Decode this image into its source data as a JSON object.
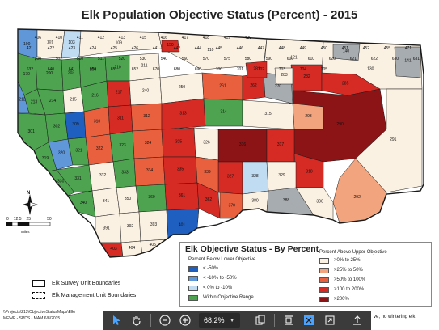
{
  "map": {
    "title": "Elk Population Objective Status (Percent) - 2015",
    "colors": {
      "below_50": "#1f5fbf",
      "below_10_50": "#5f97d8",
      "below_0_10": "#bfdcf2",
      "within": "#4ea350",
      "above_0_25": "#fbf1e2",
      "above_25_50": "#f2a47e",
      "above_50_100": "#e8603e",
      "above_100_200": "#d62a24",
      "above_200": "#8c1416",
      "no_elk": "#a7acb0",
      "boundary": "#1a1a1a",
      "land": "#ffffff"
    },
    "unit_labels": [
      "100",
      "101",
      "103",
      "109",
      "110",
      "121",
      "130",
      "140",
      "141",
      "150",
      "170",
      "200",
      "203",
      "204",
      "210",
      "211",
      "212",
      "213",
      "214",
      "215",
      "216",
      "217",
      "240",
      "250",
      "261",
      "262",
      "270",
      "281",
      "282",
      "283",
      "285",
      "290",
      "291",
      "292",
      "293",
      "301",
      "302",
      "309",
      "310",
      "311",
      "312",
      "313",
      "314",
      "315",
      "316",
      "317",
      "318",
      "319",
      "320",
      "321",
      "322",
      "323",
      "324",
      "325",
      "326",
      "327",
      "328",
      "329",
      "330",
      "331",
      "332",
      "333",
      "334",
      "335",
      "339",
      "340",
      "341",
      "350",
      "360",
      "361",
      "362",
      "370",
      "380",
      "388",
      "390",
      "391",
      "392",
      "393",
      "401",
      "403",
      "404",
      "405",
      "406",
      "410",
      "411",
      "412",
      "413",
      "415",
      "416",
      "417",
      "418",
      "419",
      "420",
      "421",
      "422",
      "423",
      "424",
      "425",
      "426",
      "441",
      "442",
      "444",
      "445",
      "446",
      "447",
      "448",
      "449",
      "450",
      "451",
      "452",
      "455",
      "471",
      "500",
      "502",
      "510",
      "511",
      "520",
      "530",
      "540",
      "560",
      "570",
      "575",
      "580",
      "590",
      "600",
      "610",
      "620",
      "621",
      "622",
      "630",
      "631",
      "632",
      "640",
      "641",
      "650",
      "651",
      "652",
      "670",
      "680",
      "690",
      "700",
      "701",
      "702",
      "703",
      "704",
      "705"
    ]
  },
  "legend": {
    "title": "Elk Objective Status - By Percent",
    "below_heading": "Percent Below Lower Objective",
    "above_heading": "Percent Above Upper Objective",
    "below_items": [
      "< -50%",
      "< -10% to -50%",
      "< 0% to -10%",
      "Within Objective Range"
    ],
    "above_items": [
      ">0% to 25%",
      ">25% to 50%",
      ">50% to 100%",
      ">100 to 200%",
      ">200%"
    ]
  },
  "boundaries": {
    "survey": "Elk Survey Unit Boundaries",
    "management": "Elk Management Unit Boundaries"
  },
  "scale": {
    "ticks": [
      "0",
      "12.5",
      "25",
      "50"
    ],
    "units": "Miles",
    "north": "N"
  },
  "footer": {
    "path": "\\\\Projects\\213\\ObjectiveStatusMaps\\Elk\\",
    "credit": "MFWP - SPDS - MAM 6/8/2015",
    "note": "ve, no wintering elk"
  },
  "toolbar": {
    "zoom": "68.2%",
    "buttons": [
      "pointer-tool",
      "hand-tool",
      "zoom-out",
      "zoom-in",
      "zoom-level",
      "rotate",
      "single-page",
      "fit-page",
      "presentation",
      "share"
    ]
  }
}
